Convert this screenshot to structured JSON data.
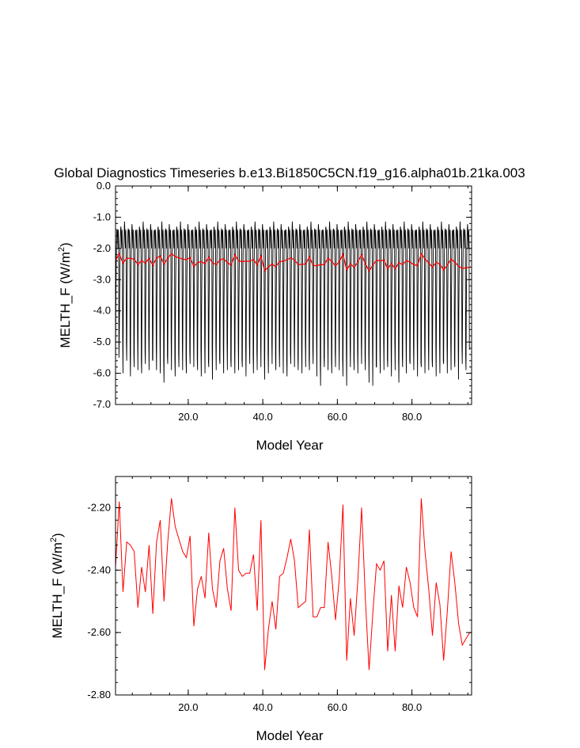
{
  "figure_title": "Global Diagnostics Timeseries b.e13.Bi1850C5CN.f19_g16.alpha01b.21ka.003",
  "colors": {
    "monthly": "#000000",
    "annual": "#ff0000",
    "axes": "#000000",
    "background": "#ffffff"
  },
  "chart_data": [
    {
      "type": "line",
      "title": "Global Diagnostics Timeseries b.e13.Bi1850C5CN.f19_g16.alpha01b.21ka.003",
      "xlabel": "Model Year",
      "ylabel_main": "MELTH_F (W/m",
      "ylabel_sup": "2",
      "ylabel_close": ")",
      "xlim": [
        0.5,
        96
      ],
      "ylim": [
        -7.0,
        0.0
      ],
      "x_ticks": [
        20,
        40,
        60,
        80
      ],
      "x_tick_labels": [
        "20.0",
        "40.0",
        "60.0",
        "80.0"
      ],
      "y_ticks": [
        0,
        -1,
        -2,
        -3,
        -4,
        -5,
        -6,
        -7
      ],
      "y_tick_labels": [
        "0.0",
        "-1.0",
        "-2.0",
        "-3.0",
        "-4.0",
        "-5.0",
        "-6.0",
        "-7.0"
      ],
      "grid": false,
      "series": [
        {
          "role": "monthly",
          "color": "#000000",
          "x_start": 0.5,
          "x_step": 0.08333,
          "seasonal_cycle": [
            -5.8,
            -3.9,
            -2.7,
            -1.9,
            -1.45,
            -1.3,
            -1.4,
            -1.75,
            -2.0,
            -1.4,
            -1.9,
            -4.6
          ],
          "yearly_peak_min": [
            -5.8,
            -4.9,
            -6.0,
            -5.6,
            -6.1,
            -5.8,
            -5.9,
            -6.0,
            -5.7,
            -5.9,
            -5.6,
            -5.9,
            -6.0,
            -6.3,
            -5.7,
            -5.9,
            -6.1,
            -5.8,
            -5.9,
            -6.0,
            -5.7,
            -5.8,
            -5.9,
            -6.1,
            -6.0,
            -5.8,
            -6.2,
            -5.9,
            -5.7,
            -6.0,
            -5.9,
            -5.8,
            -6.0,
            -5.9,
            -5.8,
            -6.1,
            -5.7,
            -6.0,
            -5.9,
            -5.8,
            -6.2,
            -6.0,
            -5.7,
            -5.9,
            -5.8,
            -6.0,
            -6.1,
            -5.7,
            -5.8,
            -5.9,
            -6.0,
            -5.8,
            -5.9,
            -5.7,
            -6.1,
            -6.4,
            -5.8,
            -5.9,
            -6.0,
            -5.8,
            -5.9,
            -6.1,
            -6.4,
            -5.8,
            -5.9,
            -6.0,
            -5.7,
            -5.9,
            -6.3,
            -6.4,
            -5.8,
            -6.0,
            -5.9,
            -5.8,
            -6.1,
            -5.9,
            -6.3,
            -5.8,
            -6.0,
            -5.7,
            -5.9,
            -6.1,
            -5.8,
            -6.0,
            -5.9,
            -5.8,
            -6.1,
            -6.0,
            -5.7,
            -6.0,
            -5.9,
            -5.8,
            -6.2,
            -5.7,
            -5.9
          ]
        },
        {
          "role": "annual",
          "color": "#ff0000",
          "x": [
            0.5,
            1.5,
            2.5,
            3.5,
            4.5,
            5.5,
            6.5,
            7.5,
            8.5,
            9.5,
            10.5,
            11.5,
            12.5,
            13.5,
            14.5,
            15.5,
            16.5,
            17.5,
            18.5,
            19.5,
            20.5,
            21.5,
            22.5,
            23.5,
            24.5,
            25.5,
            26.5,
            27.5,
            28.5,
            29.5,
            30.5,
            31.5,
            32.5,
            33.5,
            34.5,
            35.5,
            36.5,
            37.5,
            38.5,
            39.5,
            40.5,
            41.5,
            42.5,
            43.5,
            44.5,
            45.5,
            46.5,
            47.5,
            48.5,
            49.5,
            50.5,
            51.5,
            52.5,
            53.5,
            54.5,
            55.5,
            56.5,
            57.5,
            58.5,
            59.5,
            60.5,
            61.5,
            62.5,
            63.5,
            64.5,
            65.5,
            66.5,
            67.5,
            68.5,
            69.5,
            70.5,
            71.5,
            72.5,
            73.5,
            74.5,
            75.5,
            76.5,
            77.5,
            78.5,
            79.5,
            80.5,
            81.5,
            82.5,
            83.5,
            84.5,
            85.5,
            86.5,
            87.5,
            88.5,
            89.5,
            90.5,
            91.5,
            92.5,
            93.5,
            94.5,
            95.5
          ],
          "values": [
            -2.39,
            -2.18,
            -2.47,
            -2.31,
            -2.32,
            -2.34,
            -2.52,
            -2.39,
            -2.47,
            -2.32,
            -2.54,
            -2.31,
            -2.24,
            -2.5,
            -2.31,
            -2.17,
            -2.26,
            -2.3,
            -2.34,
            -2.36,
            -2.29,
            -2.58,
            -2.46,
            -2.42,
            -2.49,
            -2.28,
            -2.46,
            -2.52,
            -2.37,
            -2.33,
            -2.46,
            -2.53,
            -2.2,
            -2.4,
            -2.42,
            -2.41,
            -2.41,
            -2.35,
            -2.53,
            -2.24,
            -2.72,
            -2.59,
            -2.5,
            -2.59,
            -2.42,
            -2.41,
            -2.36,
            -2.3,
            -2.37,
            -2.52,
            -2.51,
            -2.5,
            -2.27,
            -2.55,
            -2.55,
            -2.52,
            -2.52,
            -2.31,
            -2.42,
            -2.56,
            -2.43,
            -2.19,
            -2.69,
            -2.49,
            -2.61,
            -2.43,
            -2.2,
            -2.49,
            -2.72,
            -2.54,
            -2.38,
            -2.4,
            -2.37,
            -2.66,
            -2.48,
            -2.66,
            -2.45,
            -2.52,
            -2.39,
            -2.44,
            -2.52,
            -2.55,
            -2.17,
            -2.34,
            -2.46,
            -2.61,
            -2.44,
            -2.51,
            -2.69,
            -2.53,
            -2.34,
            -2.44,
            -2.57,
            -2.64,
            -2.62,
            -2.6
          ]
        }
      ]
    },
    {
      "type": "line",
      "xlabel": "Model Year",
      "ylabel_main": "MELTH_F (W/m",
      "ylabel_sup": "2",
      "ylabel_close": ")",
      "xlim": [
        0.5,
        96
      ],
      "ylim": [
        -2.8,
        -2.1
      ],
      "x_ticks": [
        20,
        40,
        60,
        80
      ],
      "x_tick_labels": [
        "20.0",
        "40.0",
        "60.0",
        "80.0"
      ],
      "y_ticks": [
        -2.2,
        -2.4,
        -2.6,
        -2.8
      ],
      "y_tick_labels": [
        "-2.20",
        "-2.40",
        "-2.60",
        "-2.80"
      ],
      "grid": false,
      "series": [
        {
          "role": "annual",
          "color": "#ff0000",
          "same_as_panel_1_annual": true
        }
      ]
    }
  ]
}
